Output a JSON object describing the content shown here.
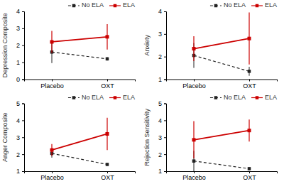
{
  "chart_data": [
    {
      "type": "line",
      "y_label": "Depression Composite",
      "categories": [
        "Placebo",
        "OXT"
      ],
      "series": [
        {
          "name": "No ELA",
          "color": "#222222",
          "line_style": "dashed",
          "marker": "square",
          "values": [
            1.6,
            1.2
          ],
          "errors": [
            0.65,
            0.1
          ]
        },
        {
          "name": "ELA",
          "color": "#cc0000",
          "line_style": "solid",
          "marker": "square",
          "values": [
            2.2,
            2.5
          ],
          "errors": [
            0.65,
            0.75
          ]
        }
      ],
      "ylim": [
        0,
        4
      ],
      "yticks": [
        0,
        1,
        2,
        3,
        4
      ],
      "legend": "upper right"
    },
    {
      "type": "line",
      "y_label": "Anxiety",
      "categories": [
        "Placebo",
        "OXT"
      ],
      "series": [
        {
          "name": "No ELA",
          "color": "#222222",
          "line_style": "dashed",
          "marker": "square",
          "values": [
            2.05,
            1.35
          ],
          "errors": [
            0.55,
            0.2
          ]
        },
        {
          "name": "ELA",
          "color": "#cc0000",
          "line_style": "solid",
          "marker": "square",
          "values": [
            2.35,
            2.8
          ],
          "errors": [
            0.55,
            1.15
          ]
        }
      ],
      "ylim": [
        1,
        4
      ],
      "yticks": [
        1,
        2,
        3,
        4
      ],
      "legend": "upper right"
    },
    {
      "type": "line",
      "y_label": "Anger Composite",
      "categories": [
        "Placebo",
        "OXT"
      ],
      "series": [
        {
          "name": "No ELA",
          "color": "#222222",
          "line_style": "dashed",
          "marker": "square",
          "values": [
            2.05,
            1.4
          ],
          "errors": [
            0.25,
            0.08
          ]
        },
        {
          "name": "ELA",
          "color": "#cc0000",
          "line_style": "solid",
          "marker": "square",
          "values": [
            2.25,
            3.2
          ],
          "errors": [
            0.35,
            0.95
          ]
        }
      ],
      "ylim": [
        1,
        5
      ],
      "yticks": [
        1,
        2,
        3,
        4,
        5
      ],
      "legend": "upper right"
    },
    {
      "type": "line",
      "y_label": "Rejection Sensitivity",
      "categories": [
        "Placebo",
        "OXT"
      ],
      "series": [
        {
          "name": "No ELA",
          "color": "#222222",
          "line_style": "dashed",
          "marker": "square",
          "values": [
            1.6,
            1.15
          ],
          "errors": [
            0.6,
            0.08
          ]
        },
        {
          "name": "ELA",
          "color": "#cc0000",
          "line_style": "solid",
          "marker": "square",
          "values": [
            2.85,
            3.4
          ],
          "errors": [
            1.1,
            0.65
          ]
        }
      ],
      "ylim": [
        1,
        5
      ],
      "yticks": [
        1,
        2,
        3,
        4,
        5
      ],
      "legend": "upper right"
    }
  ]
}
